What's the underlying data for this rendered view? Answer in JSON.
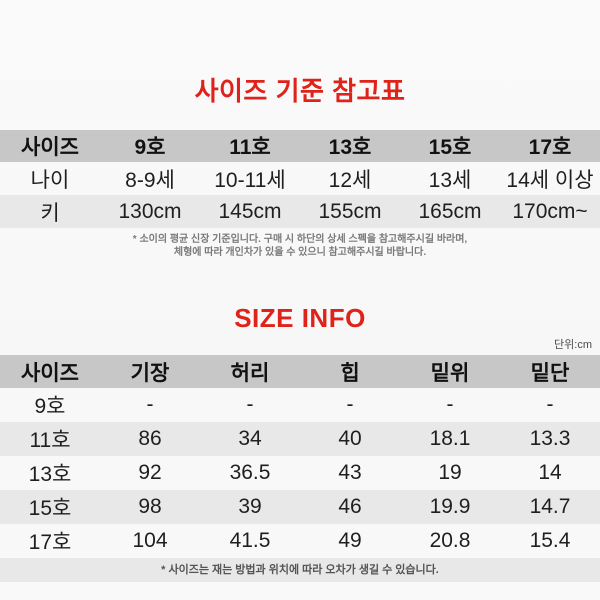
{
  "colors": {
    "title_red": "#df221a",
    "header_gray": "#c7c7c7",
    "stripe_gray": "#e8e8e8",
    "background": "#f8f8f8"
  },
  "size_reference": {
    "title": "사이즈 기준 참고표",
    "header": [
      "사이즈",
      "9호",
      "11호",
      "13호",
      "15호",
      "17호"
    ],
    "rows": [
      {
        "label": "나이",
        "values": [
          "8-9세",
          "10-11세",
          "12세",
          "13세",
          "14세 이상"
        ]
      },
      {
        "label": "키",
        "values": [
          "130cm",
          "145cm",
          "155cm",
          "165cm",
          "170cm~"
        ]
      }
    ],
    "footnote_line1": "* 소이의 평균 신장 기준입니다. 구매 시 하단의 상세 스펙을 참고해주시길 바라며,",
    "footnote_line2": "체형에 따라 개인차가 있을 수 있으니 참고해주시길 바랍니다."
  },
  "size_info": {
    "title": "SIZE INFO",
    "unit_label": "단위:cm",
    "header": [
      "사이즈",
      "기장",
      "허리",
      "힙",
      "밑위",
      "밑단"
    ],
    "rows": [
      {
        "label": "9호",
        "values": [
          "-",
          "-",
          "-",
          "-",
          "-"
        ]
      },
      {
        "label": "11호",
        "values": [
          "86",
          "34",
          "40",
          "18.1",
          "13.3"
        ]
      },
      {
        "label": "13호",
        "values": [
          "92",
          "36.5",
          "43",
          "19",
          "14"
        ]
      },
      {
        "label": "15호",
        "values": [
          "98",
          "39",
          "46",
          "19.9",
          "14.7"
        ]
      },
      {
        "label": "17호",
        "values": [
          "104",
          "41.5",
          "49",
          "20.8",
          "15.4"
        ]
      }
    ],
    "footnote": "* 사이즈는 재는 방법과 위치에 따라 오차가 생길 수 있습니다."
  }
}
